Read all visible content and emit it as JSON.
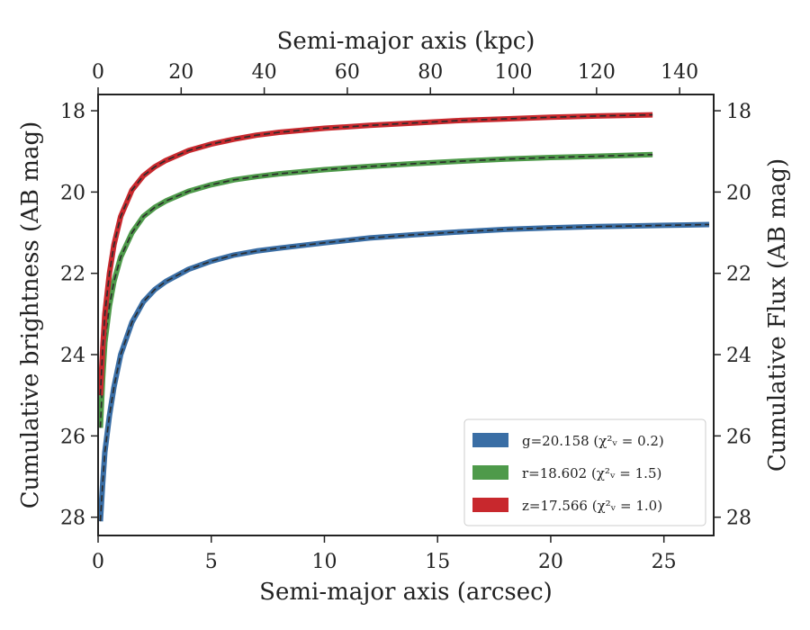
{
  "chart_data": {
    "type": "line",
    "xlabel": "Semi-major axis (arcsec)",
    "xlabel_top": "Semi-major axis (kpc)",
    "ylabel": "Cumulative brightness (AB mag)",
    "ylabel_right": "Cumulative Flux (AB mag)",
    "xlim": [
      0,
      27.2
    ],
    "ylim": [
      28.45,
      17.6
    ],
    "xlim_top": [
      0,
      148.2
    ],
    "x_ticks": [
      0,
      5,
      10,
      15,
      20,
      25
    ],
    "x_tick_labels": [
      "0",
      "5",
      "10",
      "15",
      "20",
      "25"
    ],
    "x_top_ticks": [
      0,
      20,
      40,
      60,
      80,
      100,
      120,
      140
    ],
    "x_top_tick_labels": [
      "0",
      "20",
      "40",
      "60",
      "80",
      "100",
      "120",
      "140"
    ],
    "y_ticks": [
      18,
      20,
      22,
      24,
      26,
      28
    ],
    "y_tick_labels": [
      "18",
      "20",
      "22",
      "24",
      "26",
      "28"
    ],
    "grid": false,
    "legend_position": "bottom-right",
    "series": [
      {
        "name": "g",
        "legend_label": "g=20.158 (χ²ᵥ = 0.2)",
        "color": "#3a6ea5",
        "x": [
          0.1,
          0.2,
          0.3,
          0.5,
          0.7,
          1.0,
          1.5,
          2.0,
          2.5,
          3.0,
          4.0,
          5.0,
          6.0,
          7.0,
          8.0,
          10.0,
          12.0,
          14.0,
          16.0,
          18.0,
          20.0,
          22.0,
          24.0,
          25.0,
          27.0
        ],
        "y": [
          28.1,
          27.2,
          26.4,
          25.5,
          24.8,
          24.0,
          23.2,
          22.7,
          22.4,
          22.2,
          21.9,
          21.7,
          21.55,
          21.45,
          21.38,
          21.25,
          21.13,
          21.05,
          20.98,
          20.92,
          20.88,
          20.85,
          20.83,
          20.82,
          20.8
        ]
      },
      {
        "name": "r",
        "legend_label": "r=18.602 (χ²ᵥ = 1.5)",
        "color": "#4e9a4a",
        "x": [
          0.1,
          0.2,
          0.3,
          0.5,
          0.7,
          1.0,
          1.5,
          2.0,
          2.5,
          3.0,
          4.0,
          5.0,
          6.0,
          7.0,
          8.0,
          10.0,
          12.0,
          14.0,
          16.0,
          18.0,
          20.0,
          22.0,
          24.5
        ],
        "y": [
          25.8,
          24.6,
          23.7,
          22.8,
          22.2,
          21.6,
          21.0,
          20.6,
          20.38,
          20.22,
          19.98,
          19.82,
          19.7,
          19.62,
          19.55,
          19.45,
          19.37,
          19.3,
          19.24,
          19.19,
          19.15,
          19.12,
          19.08
        ]
      },
      {
        "name": "z",
        "legend_label": "z=17.566 (χ²ᵥ = 1.0)",
        "color": "#c8282d",
        "x": [
          0.1,
          0.2,
          0.3,
          0.5,
          0.7,
          1.0,
          1.5,
          2.0,
          2.5,
          3.0,
          4.0,
          5.0,
          6.0,
          7.0,
          8.0,
          10.0,
          12.0,
          14.0,
          16.0,
          18.0,
          20.0,
          22.0,
          24.5
        ],
        "y": [
          25.0,
          23.9,
          23.0,
          22.0,
          21.3,
          20.6,
          19.95,
          19.6,
          19.38,
          19.22,
          18.98,
          18.82,
          18.7,
          18.6,
          18.53,
          18.43,
          18.36,
          18.3,
          18.24,
          18.2,
          18.16,
          18.13,
          18.1
        ]
      }
    ]
  }
}
